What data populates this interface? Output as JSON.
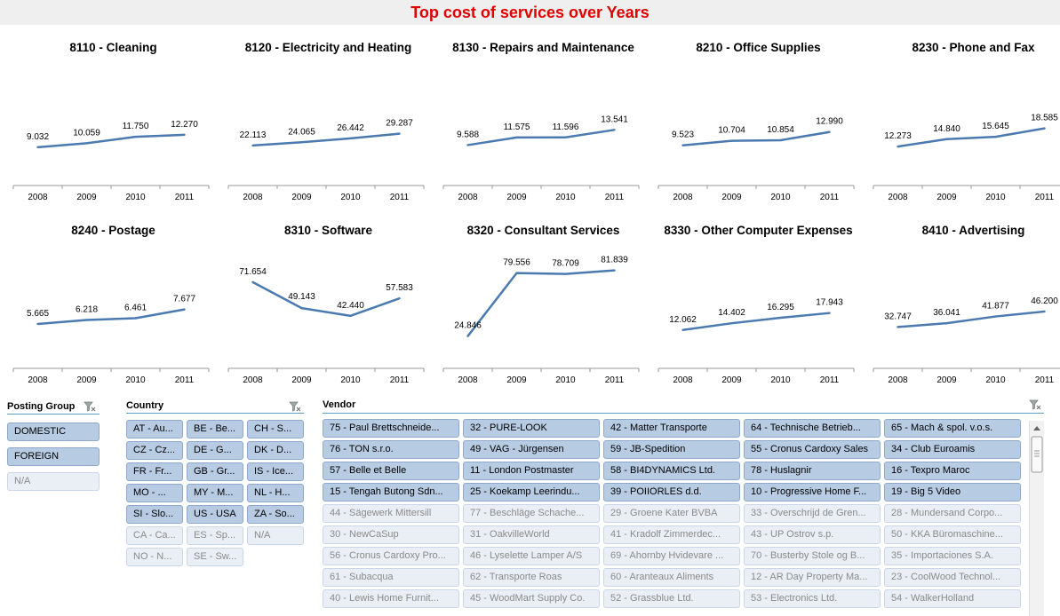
{
  "title": "Top cost of services over Years",
  "years": [
    "2008",
    "2009",
    "2010",
    "2011"
  ],
  "colors": {
    "title": "#e00000",
    "series": "#4a7ab0",
    "selected_bg": "#b7cbe3",
    "unselected_bg": "#eaeff6"
  },
  "chart_data": [
    {
      "type": "line",
      "title": "8110 - Cleaning",
      "categories": [
        "2008",
        "2009",
        "2010",
        "2011"
      ],
      "values": [
        9032,
        10059,
        11750,
        12270
      ],
      "labels": [
        "9.032",
        "10.059",
        "11.750",
        "12.270"
      ],
      "ylim": [
        0,
        30000
      ]
    },
    {
      "type": "line",
      "title": "8120 - Electricity and Heating",
      "categories": [
        "2008",
        "2009",
        "2010",
        "2011"
      ],
      "values": [
        22113,
        24065,
        26442,
        29287
      ],
      "labels": [
        "22.113",
        "24.065",
        "26.442",
        "29.287"
      ],
      "ylim": [
        0,
        70000
      ]
    },
    {
      "type": "line",
      "title": "8130 - Repairs and Maintenance",
      "categories": [
        "2008",
        "2009",
        "2010",
        "2011"
      ],
      "values": [
        9588,
        11575,
        11596,
        13541
      ],
      "labels": [
        "9.588",
        "11.575",
        "11.596",
        "13.541"
      ],
      "ylim": [
        0,
        30000
      ]
    },
    {
      "type": "line",
      "title": "8210 - Office Supplies",
      "categories": [
        "2008",
        "2009",
        "2010",
        "2011"
      ],
      "values": [
        9523,
        10704,
        10854,
        12990
      ],
      "labels": [
        "9.523",
        "10.704",
        "10.854",
        "12.990"
      ],
      "ylim": [
        0,
        30000
      ]
    },
    {
      "type": "line",
      "title": "8230 - Phone and Fax",
      "categories": [
        "2008",
        "2009",
        "2010",
        "2011"
      ],
      "values": [
        12273,
        14840,
        15645,
        18585
      ],
      "labels": [
        "12.273",
        "14.840",
        "15.645",
        "18.585"
      ],
      "ylim": [
        0,
        40000
      ]
    },
    {
      "type": "line",
      "title": "8240 - Postage",
      "categories": [
        "2008",
        "2009",
        "2010",
        "2011"
      ],
      "values": [
        5665,
        6218,
        6461,
        7677
      ],
      "labels": [
        "5.665",
        "6.218",
        "6.461",
        "7.677"
      ],
      "ylim": [
        0,
        16000
      ]
    },
    {
      "type": "line",
      "title": "8310 - Software",
      "categories": [
        "2008",
        "2009",
        "2010",
        "2011"
      ],
      "values": [
        71654,
        49143,
        42440,
        57583
      ],
      "labels": [
        "71.654",
        "49.143",
        "42.440",
        "57.583"
      ],
      "ylim": [
        0,
        100000
      ]
    },
    {
      "type": "line",
      "title": "8320 - Consultant Services",
      "categories": [
        "2008",
        "2009",
        "2010",
        "2011"
      ],
      "values": [
        24846,
        79556,
        78709,
        81839
      ],
      "labels": [
        "24.846",
        "79.556",
        "78.709",
        "81.839"
      ],
      "ylim": [
        0,
        100000
      ]
    },
    {
      "type": "line",
      "title": "8330 - Other Computer Expenses",
      "categories": [
        "2008",
        "2009",
        "2010",
        "2011"
      ],
      "values": [
        12062,
        14402,
        16295,
        17943
      ],
      "labels": [
        "12.062",
        "14.402",
        "16.295",
        "17.943"
      ],
      "ylim": [
        0,
        40000
      ]
    },
    {
      "type": "line",
      "title": "8410 - Advertising",
      "categories": [
        "2008",
        "2009",
        "2010",
        "2011"
      ],
      "values": [
        32747,
        36041,
        41877,
        46200
      ],
      "labels": [
        "32.747",
        "36.041",
        "41.877",
        "46.200"
      ],
      "ylim": [
        0,
        100000
      ]
    }
  ],
  "slicers": {
    "posting_group": {
      "header": "Posting Group",
      "items": [
        {
          "label": "DOMESTIC",
          "selected": true
        },
        {
          "label": "FOREIGN",
          "selected": true
        },
        {
          "label": "N/A",
          "selected": false
        }
      ]
    },
    "country": {
      "header": "Country",
      "items": [
        {
          "label": "AT - Au...",
          "selected": true
        },
        {
          "label": "BE - Be...",
          "selected": true
        },
        {
          "label": "CH - S...",
          "selected": true
        },
        {
          "label": "CZ - Cz...",
          "selected": true
        },
        {
          "label": "DE - G...",
          "selected": true
        },
        {
          "label": "DK - D...",
          "selected": true
        },
        {
          "label": "FR - Fr...",
          "selected": true
        },
        {
          "label": "GB - Gr...",
          "selected": true
        },
        {
          "label": "IS - Ice...",
          "selected": true
        },
        {
          "label": "MO - ...",
          "selected": true
        },
        {
          "label": "MY - M...",
          "selected": true
        },
        {
          "label": "NL - H...",
          "selected": true
        },
        {
          "label": "SI - Slo...",
          "selected": true
        },
        {
          "label": "US - USA",
          "selected": true
        },
        {
          "label": "ZA - So...",
          "selected": true
        },
        {
          "label": "CA - Ca...",
          "selected": false
        },
        {
          "label": "ES - Sp...",
          "selected": false
        },
        {
          "label": "N/A",
          "selected": false
        },
        {
          "label": "NO - N...",
          "selected": false
        },
        {
          "label": "SE - Sw...",
          "selected": false
        }
      ]
    },
    "vendor": {
      "header": "Vendor",
      "items": [
        {
          "label": "75 - Paul Brettschneide...",
          "selected": true
        },
        {
          "label": "32 - PURE-LOOK",
          "selected": true
        },
        {
          "label": "42 - Matter Transporte",
          "selected": true
        },
        {
          "label": "64 - Technische Betrieb...",
          "selected": true
        },
        {
          "label": "65 - Mach & spol. v.o.s.",
          "selected": true
        },
        {
          "label": "76 - TON s.r.o.",
          "selected": true
        },
        {
          "label": "49 - VAG - Jürgensen",
          "selected": true
        },
        {
          "label": "59 - JB-Spedition",
          "selected": true
        },
        {
          "label": "55 - Cronus Cardoxy Sales",
          "selected": true
        },
        {
          "label": "34 - Club Euroamis",
          "selected": true
        },
        {
          "label": "57 - Belle et Belle",
          "selected": true
        },
        {
          "label": "11 - London Postmaster",
          "selected": true
        },
        {
          "label": "58 - BI4DYNAMICS Ltd.",
          "selected": true
        },
        {
          "label": "78 - Huslagnir",
          "selected": true
        },
        {
          "label": "16 - Texpro Maroc",
          "selected": true
        },
        {
          "label": "15 - Tengah Butong Sdn...",
          "selected": true
        },
        {
          "label": "25 - Koekamp Leerindu...",
          "selected": true
        },
        {
          "label": "39 - POIIORLES d.d.",
          "selected": true
        },
        {
          "label": "10 - Progressive Home F...",
          "selected": true
        },
        {
          "label": "19 - Big 5 Video",
          "selected": true
        },
        {
          "label": "44 - Sägewerk Mittersill",
          "selected": false
        },
        {
          "label": "77 - Beschläge Schache...",
          "selected": false
        },
        {
          "label": "29 - Groene Kater BVBA",
          "selected": false
        },
        {
          "label": "33 - Overschrijd de Gren...",
          "selected": false
        },
        {
          "label": "28 - Mundersand Corpo...",
          "selected": false
        },
        {
          "label": "30 - NewCaSup",
          "selected": false
        },
        {
          "label": "31 - OakvilleWorld",
          "selected": false
        },
        {
          "label": "41 - Kradolf Zimmerdec...",
          "selected": false
        },
        {
          "label": "43 - UP Ostrov s.p.",
          "selected": false
        },
        {
          "label": "50 - KKA Büromaschine...",
          "selected": false
        },
        {
          "label": "56 - Cronus Cardoxy Pro...",
          "selected": false
        },
        {
          "label": "46 - Lyselette Lamper A/S",
          "selected": false
        },
        {
          "label": "69 - Ahornby Hvidevare ...",
          "selected": false
        },
        {
          "label": "70 - Busterby Stole og B...",
          "selected": false
        },
        {
          "label": "35 - Importaciones S.A.",
          "selected": false
        },
        {
          "label": "61 - Subacqua",
          "selected": false
        },
        {
          "label": "62 - Transporte Roas",
          "selected": false
        },
        {
          "label": "60 - Aranteaux Aliments",
          "selected": false
        },
        {
          "label": "12 - AR Day Property Ma...",
          "selected": false
        },
        {
          "label": "23 - CoolWood Technol...",
          "selected": false
        },
        {
          "label": "40 - Lewis Home Furnit...",
          "selected": false
        },
        {
          "label": "45 - WoodMart Supply Co.",
          "selected": false
        },
        {
          "label": "52 - Grassblue Ltd.",
          "selected": false
        },
        {
          "label": "53 - Electronics Ltd.",
          "selected": false
        },
        {
          "label": "54 - WalkerHolland",
          "selected": false
        }
      ]
    }
  }
}
